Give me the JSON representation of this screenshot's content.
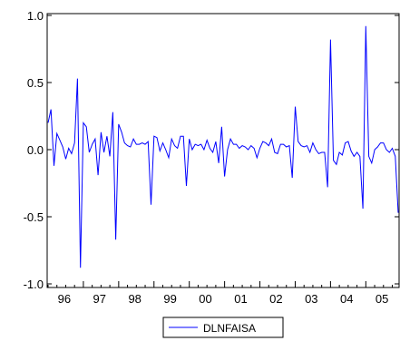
{
  "chart_data": {
    "type": "line",
    "title": "",
    "xlabel": "",
    "ylabel": "",
    "ylim": [
      -1.0,
      1.0
    ],
    "y_ticks": [
      1.0,
      0.5,
      0.0,
      -0.5,
      -1.0
    ],
    "y_tick_labels": [
      "1.0",
      "0.5",
      "0.0",
      "-0.5",
      "-1.0"
    ],
    "x_tick_labels": [
      "96",
      "97",
      "98",
      "99",
      "00",
      "01",
      "02",
      "03",
      "04",
      "05"
    ],
    "x_start": "1996-01",
    "x_end": "2005-12",
    "frequency": "monthly",
    "grid": false,
    "legend": "bottom-center",
    "line_color": "#0000ff",
    "series": [
      {
        "name": "DLNFAISA",
        "values": [
          0.2,
          0.3,
          -0.12,
          0.12,
          0.07,
          0.02,
          -0.07,
          0.01,
          -0.03,
          0.05,
          0.53,
          -0.88,
          0.2,
          0.17,
          -0.02,
          0.04,
          0.08,
          -0.19,
          0.13,
          -0.02,
          0.1,
          -0.05,
          0.28,
          -0.67,
          0.19,
          0.13,
          0.05,
          0.03,
          0.02,
          0.08,
          0.04,
          0.04,
          0.05,
          0.04,
          0.06,
          -0.41,
          0.1,
          0.09,
          -0.01,
          0.05,
          0.0,
          -0.06,
          0.08,
          0.03,
          0.01,
          0.1,
          0.1,
          -0.27,
          0.08,
          0.0,
          0.04,
          0.03,
          0.04,
          0.0,
          0.07,
          0.01,
          -0.02,
          0.06,
          -0.1,
          0.17,
          -0.2,
          0.0,
          0.08,
          0.04,
          0.04,
          0.01,
          0.03,
          0.02,
          0.0,
          0.03,
          0.01,
          -0.06,
          0.01,
          0.06,
          0.05,
          0.03,
          0.08,
          -0.02,
          -0.03,
          0.04,
          0.04,
          0.02,
          0.03,
          -0.21,
          0.32,
          0.06,
          0.03,
          0.02,
          0.03,
          -0.02,
          0.05,
          0.0,
          -0.03,
          -0.02,
          -0.02,
          -0.28,
          0.82,
          -0.08,
          -0.11,
          -0.02,
          -0.04,
          0.05,
          0.06,
          -0.01,
          -0.05,
          -0.02,
          -0.05,
          -0.44,
          0.92,
          -0.05,
          -0.1,
          0.0,
          0.02,
          0.05,
          0.05,
          0.0,
          -0.02,
          0.01,
          -0.05,
          -0.47
        ]
      }
    ]
  }
}
